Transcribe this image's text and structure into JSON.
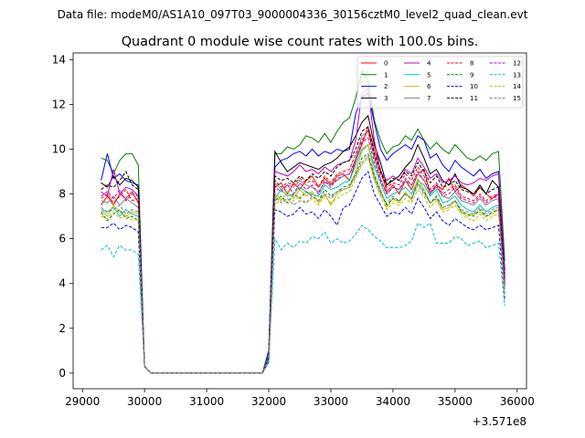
{
  "chart_data": {
    "type": "line",
    "suptitle": "Data file: modeM0/AS1A10_097T03_9000004336_30156cztM0_level2_quad_clean.evt",
    "title": "Quadrant 0 module wise count rates with 100.0s bins.",
    "xlabel": "",
    "ylabel": "",
    "x_offset_label": "+3.571e8",
    "xlim": [
      28850,
      36150
    ],
    "ylim": [
      -0.7,
      14.3
    ],
    "xticks": [
      29000,
      30000,
      31000,
      32000,
      33000,
      34000,
      35000,
      36000
    ],
    "xtick_labels": [
      "29000",
      "30000",
      "31000",
      "32000",
      "33000",
      "34000",
      "35000",
      "36000"
    ],
    "yticks": [
      0,
      2,
      4,
      6,
      8,
      10,
      12,
      14
    ],
    "ytick_labels": [
      "0",
      "2",
      "4",
      "6",
      "8",
      "10",
      "12",
      "14"
    ],
    "legend_position": "top-right",
    "legend_columns": 4,
    "grid": false,
    "x": [
      29300,
      29400,
      29500,
      29600,
      29700,
      29800,
      29900,
      30000,
      30100,
      30200,
      30300,
      30400,
      30500,
      30600,
      30700,
      30800,
      30900,
      31000,
      31100,
      31200,
      31300,
      31400,
      31500,
      31600,
      31700,
      31800,
      31900,
      32000,
      32100,
      32200,
      32300,
      32400,
      32500,
      32600,
      32700,
      32800,
      32900,
      33000,
      33100,
      33200,
      33300,
      33400,
      33500,
      33600,
      33700,
      33800,
      33900,
      34000,
      34100,
      34200,
      34300,
      34400,
      34500,
      34600,
      34700,
      34800,
      34900,
      35000,
      35100,
      35200,
      35300,
      35400,
      35500,
      35600,
      35700,
      35800
    ],
    "series": [
      {
        "name": "0",
        "color": "#ff0000",
        "dash": "solid",
        "values": [
          7.5,
          7.9,
          7.5,
          8.0,
          7.8,
          8.1,
          7.6,
          0.3,
          0,
          0,
          0,
          0,
          0,
          0,
          0,
          0,
          0,
          0,
          0,
          0,
          0,
          0,
          0,
          0,
          0,
          0,
          0,
          0.8,
          8.3,
          8.5,
          8.0,
          8.5,
          8.2,
          8.6,
          8.8,
          8.3,
          8.7,
          8.4,
          8.8,
          8.9,
          8.6,
          9.5,
          10.2,
          11.0,
          10.0,
          9.1,
          8.1,
          8.4,
          8.0,
          8.6,
          8.2,
          8.9,
          9.1,
          8.0,
          8.4,
          8.2,
          8.7,
          8.1,
          8.4,
          8.2,
          7.9,
          8.3,
          8.0,
          7.8,
          8.0,
          4.2
        ]
      },
      {
        "name": "1",
        "color": "#008000",
        "dash": "solid",
        "values": [
          9.6,
          9.5,
          8.9,
          9.5,
          9.8,
          9.8,
          9.3,
          0.3,
          0,
          0,
          0,
          0,
          0,
          0,
          0,
          0,
          0,
          0,
          0,
          0,
          0,
          0,
          0,
          0,
          0,
          0,
          0,
          1.0,
          9.8,
          9.8,
          10.1,
          10.0,
          10.2,
          10.6,
          10.5,
          10.3,
          10.7,
          10.3,
          10.8,
          11.2,
          11.4,
          12.3,
          13.5,
          13.1,
          11.3,
          10.4,
          9.8,
          10.1,
          10.2,
          10.6,
          10.4,
          10.9,
          10.4,
          10.0,
          10.3,
          10.0,
          9.8,
          10.2,
          9.9,
          9.6,
          9.5,
          9.7,
          9.5,
          9.8,
          9.9,
          5.0
        ]
      },
      {
        "name": "2",
        "color": "#0000ff",
        "dash": "solid",
        "values": [
          8.6,
          9.8,
          8.7,
          8.9,
          8.6,
          8.5,
          8.4,
          0.3,
          0,
          0,
          0,
          0,
          0,
          0,
          0,
          0,
          0,
          0,
          0,
          0,
          0,
          0,
          0,
          0,
          0,
          0,
          0,
          1.0,
          9.2,
          9.5,
          9.6,
          9.8,
          9.9,
          9.7,
          10.0,
          9.7,
          9.9,
          9.8,
          10.0,
          9.9,
          10.0,
          11.6,
          12.3,
          12.5,
          11.2,
          10.0,
          9.5,
          9.8,
          10.0,
          10.2,
          10.0,
          10.6,
          10.4,
          9.6,
          9.8,
          9.3,
          9.0,
          9.5,
          9.2,
          9.0,
          8.8,
          9.1,
          8.7,
          8.9,
          9.0,
          4.6
        ]
      },
      {
        "name": "3",
        "color": "#000000",
        "dash": "solid",
        "values": [
          8.5,
          8.3,
          8.8,
          8.4,
          8.7,
          8.6,
          8.3,
          0.3,
          0,
          0,
          0,
          0,
          0,
          0,
          0,
          0,
          0,
          0,
          0,
          0,
          0,
          0,
          0,
          0,
          0,
          0,
          0,
          0.8,
          9.9,
          9.4,
          9.0,
          9.2,
          9.4,
          9.3,
          9.2,
          9.1,
          9.3,
          9.4,
          9.6,
          9.9,
          10.1,
          10.6,
          11.2,
          11.5,
          10.2,
          9.4,
          8.4,
          8.6,
          8.8,
          9.2,
          9.5,
          10.2,
          9.6,
          8.9,
          9.1,
          8.6,
          8.4,
          8.9,
          8.3,
          8.2,
          8.0,
          8.4,
          8.0,
          8.6,
          8.3,
          4.4
        ]
      },
      {
        "name": "4",
        "color": "#bf00bf",
        "dash": "solid",
        "values": [
          8.1,
          7.9,
          9.1,
          8.0,
          8.3,
          8.2,
          7.9,
          0.3,
          0,
          0,
          0,
          0,
          0,
          0,
          0,
          0,
          0,
          0,
          0,
          0,
          0,
          0,
          0,
          0,
          0,
          0,
          0,
          0.7,
          9.0,
          8.9,
          8.8,
          9.0,
          9.3,
          9.0,
          9.1,
          8.9,
          9.2,
          9.0,
          9.3,
          9.4,
          9.5,
          10.4,
          12.5,
          12.7,
          10.4,
          9.0,
          8.6,
          8.8,
          8.6,
          9.1,
          8.9,
          9.6,
          9.2,
          8.7,
          8.9,
          8.5,
          8.6,
          8.8,
          8.5,
          8.4,
          8.5,
          8.7,
          8.6,
          8.8,
          8.9,
          4.3
        ]
      },
      {
        "name": "5",
        "color": "#00bfbf",
        "dash": "solid",
        "values": [
          7.3,
          7.2,
          7.4,
          7.0,
          7.3,
          7.1,
          7.0,
          0.3,
          0,
          0,
          0,
          0,
          0,
          0,
          0,
          0,
          0,
          0,
          0,
          0,
          0,
          0,
          0,
          0,
          0,
          0,
          0,
          0.8,
          7.8,
          8.2,
          7.9,
          8.0,
          8.3,
          8.1,
          8.0,
          7.9,
          8.4,
          8.2,
          8.3,
          8.5,
          8.6,
          9.3,
          10.0,
          10.2,
          9.2,
          8.5,
          7.8,
          8.0,
          8.1,
          8.3,
          8.0,
          8.6,
          8.4,
          7.9,
          8.2,
          7.6,
          7.7,
          7.9,
          7.5,
          7.3,
          7.2,
          7.5,
          7.2,
          7.4,
          7.5,
          3.8
        ]
      },
      {
        "name": "6",
        "color": "#bfbf00",
        "dash": "solid",
        "values": [
          7.3,
          7.0,
          7.5,
          7.2,
          7.0,
          7.2,
          7.1,
          0.3,
          0,
          0,
          0,
          0,
          0,
          0,
          0,
          0,
          0,
          0,
          0,
          0,
          0,
          0,
          0,
          0,
          0,
          0,
          0,
          0.7,
          8.0,
          7.7,
          8.1,
          7.8,
          8.2,
          7.9,
          8.1,
          7.6,
          8.0,
          7.5,
          8.0,
          8.2,
          8.3,
          9.0,
          9.9,
          10.2,
          8.9,
          8.2,
          7.4,
          7.8,
          7.6,
          8.1,
          7.7,
          8.7,
          8.2,
          7.6,
          7.8,
          7.3,
          7.4,
          7.7,
          7.2,
          7.0,
          7.1,
          7.2,
          7.0,
          7.1,
          7.3,
          3.7
        ]
      },
      {
        "name": "7",
        "color": "#808080",
        "dash": "solid",
        "values": [
          7.7,
          7.6,
          7.9,
          7.5,
          7.8,
          7.6,
          7.4,
          0.3,
          0,
          0,
          0,
          0,
          0,
          0,
          0,
          0,
          0,
          0,
          0,
          0,
          0,
          0,
          0,
          0,
          0,
          0,
          0,
          0.7,
          8.5,
          8.2,
          8.4,
          8.3,
          8.6,
          8.4,
          8.3,
          8.1,
          8.5,
          8.4,
          8.6,
          8.8,
          8.9,
          9.6,
          10.6,
          10.8,
          9.6,
          8.7,
          8.0,
          8.3,
          8.2,
          8.6,
          8.4,
          8.9,
          8.6,
          8.0,
          8.3,
          7.9,
          7.8,
          8.1,
          7.7,
          7.6,
          7.5,
          7.8,
          7.5,
          7.7,
          7.8,
          3.9
        ]
      },
      {
        "name": "8",
        "color": "#ff0000",
        "dash": "dashed",
        "values": [
          7.8,
          8.0,
          7.6,
          7.9,
          8.2,
          7.7,
          7.8,
          0.3,
          0,
          0,
          0,
          0,
          0,
          0,
          0,
          0,
          0,
          0,
          0,
          0,
          0,
          0,
          0,
          0,
          0,
          0,
          0,
          0.7,
          8.6,
          8.3,
          8.5,
          8.4,
          8.7,
          8.5,
          8.6,
          8.3,
          8.8,
          8.5,
          8.9,
          9.0,
          9.1,
          9.8,
          10.4,
          10.8,
          9.7,
          8.9,
          8.3,
          8.5,
          8.4,
          8.9,
          8.6,
          9.2,
          8.8,
          8.2,
          8.5,
          8.0,
          8.2,
          8.4,
          7.9,
          7.8,
          7.7,
          8.0,
          7.7,
          7.9,
          8.0,
          4.0
        ]
      },
      {
        "name": "9",
        "color": "#008000",
        "dash": "dashed",
        "values": [
          7.2,
          6.8,
          7.1,
          7.3,
          6.9,
          7.0,
          6.8,
          0.3,
          0,
          0,
          0,
          0,
          0,
          0,
          0,
          0,
          0,
          0,
          0,
          0,
          0,
          0,
          0,
          0,
          0,
          0,
          0,
          0.6,
          7.7,
          7.9,
          7.6,
          8.0,
          7.8,
          8.1,
          7.9,
          7.7,
          8.2,
          7.9,
          8.1,
          8.3,
          8.4,
          8.9,
          9.6,
          9.8,
          8.8,
          8.1,
          7.5,
          7.8,
          7.7,
          8.0,
          7.8,
          8.5,
          8.1,
          7.6,
          7.9,
          7.4,
          7.5,
          7.7,
          7.2,
          7.1,
          7.0,
          7.3,
          7.0,
          7.2,
          7.3,
          3.6
        ]
      },
      {
        "name": "10",
        "color": "#0000ff",
        "dash": "dashed",
        "values": [
          6.5,
          6.5,
          6.7,
          6.4,
          6.6,
          6.5,
          6.3,
          0.3,
          0,
          0,
          0,
          0,
          0,
          0,
          0,
          0,
          0,
          0,
          0,
          0,
          0,
          0,
          0,
          0,
          0,
          0,
          0,
          0.5,
          7.3,
          7.2,
          7.0,
          7.1,
          7.4,
          7.1,
          7.2,
          6.9,
          7.3,
          7.0,
          6.6,
          7.4,
          7.5,
          8.1,
          8.7,
          9.0,
          8.0,
          7.5,
          7.0,
          7.2,
          7.1,
          7.4,
          7.1,
          7.8,
          7.4,
          6.9,
          7.2,
          6.8,
          6.6,
          6.9,
          6.7,
          6.5,
          6.4,
          6.6,
          6.4,
          6.5,
          6.6,
          3.3
        ]
      },
      {
        "name": "11",
        "color": "#000000",
        "dash": "dashed",
        "values": [
          8.2,
          8.4,
          8.3,
          8.6,
          9.0,
          8.4,
          8.2,
          0.3,
          0,
          0,
          0,
          0,
          0,
          0,
          0,
          0,
          0,
          0,
          0,
          0,
          0,
          0,
          0,
          0,
          0,
          0,
          0,
          0.7,
          8.8,
          8.6,
          8.7,
          8.5,
          8.8,
          8.6,
          8.9,
          8.7,
          9.0,
          8.8,
          9.2,
          9.4,
          9.5,
          10.0,
          10.8,
          11.0,
          9.8,
          9.0,
          8.4,
          8.7,
          8.6,
          9.0,
          8.8,
          9.4,
          9.0,
          8.5,
          8.8,
          8.3,
          8.4,
          8.6,
          8.2,
          8.1,
          8.0,
          8.3,
          8.0,
          8.2,
          8.3,
          4.1
        ]
      },
      {
        "name": "12",
        "color": "#bf00bf",
        "dash": "dashed",
        "values": [
          7.9,
          8.1,
          7.8,
          8.2,
          7.7,
          8.0,
          7.9,
          0.3,
          0,
          0,
          0,
          0,
          0,
          0,
          0,
          0,
          0,
          0,
          0,
          0,
          0,
          0,
          0,
          0,
          0,
          0,
          0,
          0.6,
          8.3,
          8.1,
          8.4,
          8.0,
          8.5,
          8.2,
          8.4,
          8.0,
          8.6,
          8.3,
          8.7,
          8.8,
          8.9,
          9.5,
          10.3,
          10.5,
          9.4,
          8.6,
          8.0,
          8.3,
          8.2,
          8.7,
          8.4,
          9.0,
          8.6,
          8.1,
          8.4,
          7.9,
          8.0,
          8.3,
          7.8,
          7.7,
          7.6,
          7.9,
          7.6,
          7.8,
          7.9,
          3.9
        ]
      },
      {
        "name": "13",
        "color": "#00bfbf",
        "dash": "dashed",
        "values": [
          5.5,
          5.7,
          5.2,
          5.7,
          5.5,
          5.5,
          5.3,
          0.3,
          0,
          0,
          0,
          0,
          0,
          0,
          0,
          0,
          0,
          0,
          0,
          0,
          0,
          0,
          0,
          0,
          0,
          0,
          0,
          0.5,
          6.0,
          5.5,
          5.8,
          5.6,
          5.9,
          5.8,
          6.1,
          6.0,
          6.3,
          5.8,
          6.0,
          5.8,
          5.9,
          6.2,
          6.6,
          6.4,
          6.1,
          5.9,
          5.6,
          5.6,
          5.6,
          5.7,
          5.9,
          6.7,
          6.5,
          6.7,
          5.8,
          5.8,
          5.8,
          6.1,
          6.0,
          5.7,
          5.8,
          5.9,
          5.6,
          5.7,
          5.8,
          3.0
        ]
      },
      {
        "name": "14",
        "color": "#bfbf00",
        "dash": "dashed",
        "values": [
          7.0,
          6.9,
          7.2,
          6.9,
          7.1,
          6.8,
          6.9,
          0.3,
          0,
          0,
          0,
          0,
          0,
          0,
          0,
          0,
          0,
          0,
          0,
          0,
          0,
          0,
          0,
          0,
          0,
          0,
          0,
          0.6,
          7.5,
          7.8,
          7.6,
          7.7,
          7.9,
          7.6,
          7.8,
          7.5,
          7.9,
          7.6,
          7.8,
          8.0,
          8.1,
          8.7,
          9.3,
          9.6,
          8.6,
          7.9,
          7.3,
          7.6,
          7.5,
          7.8,
          7.6,
          8.2,
          7.9,
          7.4,
          7.7,
          7.2,
          7.3,
          7.5,
          7.1,
          6.9,
          6.8,
          7.1,
          6.8,
          7.0,
          7.1,
          3.5
        ]
      },
      {
        "name": "15",
        "color": "#808080",
        "dash": "dashed",
        "values": [
          7.4,
          7.2,
          7.3,
          7.5,
          7.1,
          7.3,
          7.2,
          0.3,
          0,
          0,
          0,
          0,
          0,
          0,
          0,
          0,
          0,
          0,
          0,
          0,
          0,
          0,
          0,
          0,
          0,
          0,
          0,
          0.6,
          7.9,
          7.6,
          7.8,
          7.5,
          7.7,
          7.6,
          7.9,
          7.7,
          8.0,
          7.8,
          8.1,
          8.2,
          8.3,
          8.8,
          9.4,
          9.7,
          8.7,
          8.0,
          7.6,
          7.9,
          7.7,
          8.0,
          7.8,
          8.4,
          8.0,
          7.6,
          7.8,
          7.4,
          7.5,
          7.7,
          7.3,
          7.2,
          7.1,
          7.4,
          7.1,
          7.3,
          7.4,
          3.6
        ]
      }
    ]
  }
}
